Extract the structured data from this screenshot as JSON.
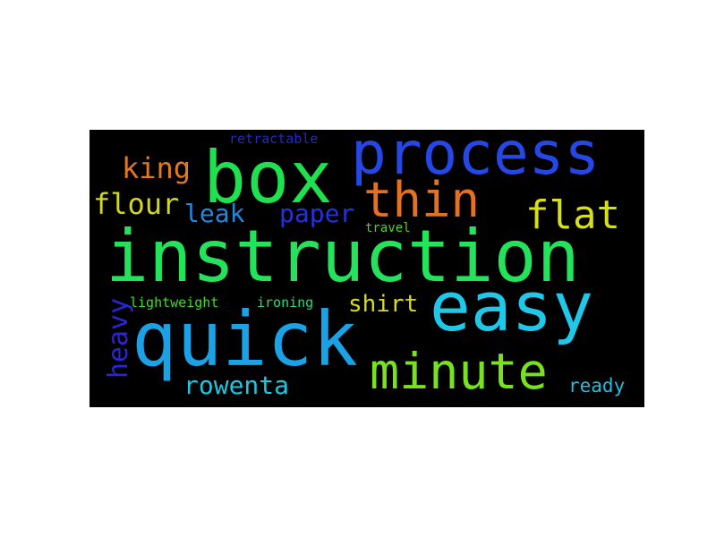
{
  "word_cloud": {
    "background": "#000000",
    "words": [
      {
        "key": "instruction",
        "text": "instruction",
        "color": "#22e35a"
      },
      {
        "key": "process",
        "text": "process",
        "color": "#2547e6"
      },
      {
        "key": "box",
        "text": "box",
        "color": "#1fe04e"
      },
      {
        "key": "easy",
        "text": "easy",
        "color": "#1fc8e8"
      },
      {
        "key": "quick",
        "text": "quick",
        "color": "#1ba2e6"
      },
      {
        "key": "minute",
        "text": "minute",
        "color": "#78e21f"
      },
      {
        "key": "thin",
        "text": "thin",
        "color": "#e5701f"
      },
      {
        "key": "flat",
        "text": "flat",
        "color": "#d7df1b"
      },
      {
        "key": "king",
        "text": "king",
        "color": "#e07a22"
      },
      {
        "key": "flour",
        "text": "flour",
        "color": "#d2d61d"
      },
      {
        "key": "leak",
        "text": "leak",
        "color": "#1f89e2"
      },
      {
        "key": "paper",
        "text": "paper",
        "color": "#2431e0"
      },
      {
        "key": "retractable",
        "text": "retractable",
        "color": "#2626c9"
      },
      {
        "key": "travel",
        "text": "travel",
        "color": "#4ed71f"
      },
      {
        "key": "lightweight",
        "text": "lightweight",
        "color": "#39e01f"
      },
      {
        "key": "ironing",
        "text": "ironing",
        "color": "#1fe07a"
      },
      {
        "key": "shirt",
        "text": "shirt",
        "color": "#d8da1d"
      },
      {
        "key": "rowenta",
        "text": "rowenta",
        "color": "#1fc6df"
      },
      {
        "key": "ready",
        "text": "ready",
        "color": "#1fbde0"
      },
      {
        "key": "heavy",
        "text": "heavy",
        "color": "#2b25d8"
      }
    ]
  }
}
